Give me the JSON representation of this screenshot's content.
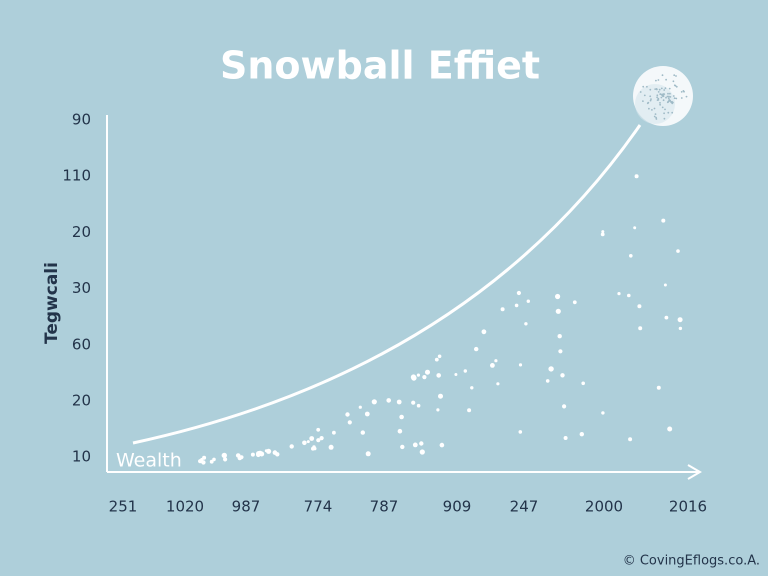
{
  "title": "Snowball Effiet",
  "y_axis_label": "Tegwcali",
  "y_labels": [
    "90",
    "110",
    "20",
    "30",
    "60",
    "20",
    "10"
  ],
  "x_labels": [
    "251",
    "1020",
    "987",
    "774",
    "787",
    "909",
    "247",
    "2000",
    "2016"
  ],
  "curve_label": "Wealth",
  "credit": "© CovingEflogs.co.A."
}
